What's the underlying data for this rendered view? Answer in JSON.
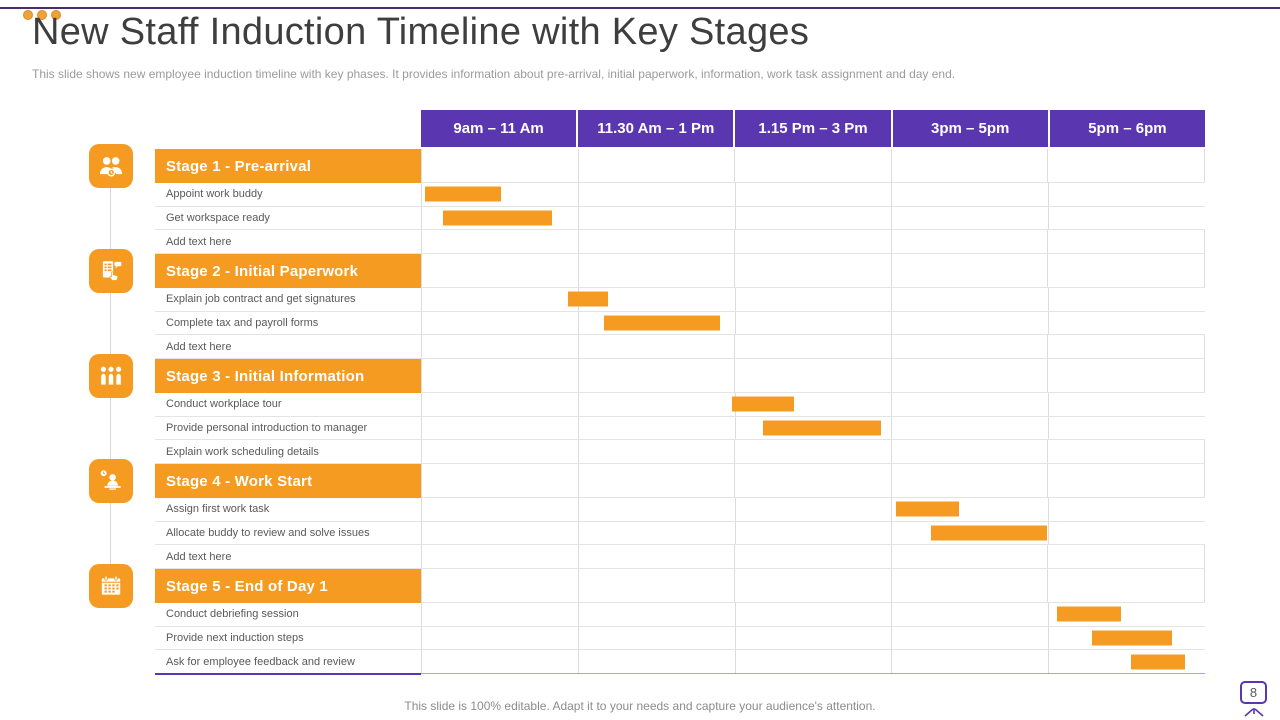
{
  "slide": {
    "title": "New Staff Induction Timeline with Key Stages",
    "subtitle": "This slide shows new employee induction timeline with key phases. It provides information about pre-arrival, initial paperwork, information, work task assignment and day end.",
    "footer": "This slide is 100% editable. Adapt it to your needs and capture your audience's attention.",
    "page_number": "8"
  },
  "colors": {
    "accent_orange": "#F59B22",
    "header_purple": "#5A36B0",
    "top_line_purple": "#4B2D6F",
    "grid_line": "#DCDCDC",
    "title_text": "#3E3E3E",
    "subtitle_text": "#9B9B9B",
    "task_text": "#595959",
    "footer_text": "#8C8C8C"
  },
  "chart_data": {
    "type": "gantt",
    "title": "New Staff Induction Timeline with Key Stages",
    "columns": [
      "9am – 11 Am",
      "11.30 Am – 1 Pm",
      "1.15 Pm – 3 Pm",
      "3pm – 5pm",
      "5pm – 6pm"
    ],
    "axis_note": "Bar positions measured as percent of full timeline width (9am to 6pm band)",
    "legend": "none",
    "grid": true,
    "stages": [
      {
        "label": "Stage 1 - Pre-arrival",
        "icon": "two-users-clock-icon",
        "tasks": [
          {
            "label": "Appoint work buddy",
            "bar": {
              "left_pct": 0.5,
              "width_pct": 9.7
            }
          },
          {
            "label": "Get workspace ready",
            "bar": {
              "left_pct": 2.8,
              "width_pct": 13.9
            }
          },
          {
            "label": "Add text here",
            "bar": null
          }
        ]
      },
      {
        "label": "Stage 2 - Initial Paperwork",
        "icon": "paperwork-form-icon",
        "tasks": [
          {
            "label": "Explain job contract and get signatures",
            "bar": {
              "left_pct": 18.8,
              "width_pct": 5.0
            }
          },
          {
            "label": "Complete tax and payroll forms",
            "bar": {
              "left_pct": 23.3,
              "width_pct": 14.9
            }
          },
          {
            "label": "Add text here",
            "bar": null
          }
        ]
      },
      {
        "label": "Stage 3 - Initial Information",
        "icon": "three-people-icon",
        "tasks": [
          {
            "label": "Conduct workplace tour",
            "bar": {
              "left_pct": 39.7,
              "width_pct": 7.9
            }
          },
          {
            "label": "Provide personal introduction to manager",
            "bar": {
              "left_pct": 43.6,
              "width_pct": 15.1
            }
          },
          {
            "label": "Explain work scheduling details",
            "bar": null
          }
        ]
      },
      {
        "label": "Stage 4 - Work Start",
        "icon": "person-desk-clock-icon",
        "tasks": [
          {
            "label": "Assign first work task",
            "bar": {
              "left_pct": 60.6,
              "width_pct": 8.0
            }
          },
          {
            "label": "Allocate buddy to review and solve issues",
            "bar": {
              "left_pct": 65.1,
              "width_pct": 14.7
            }
          },
          {
            "label": "Add text here",
            "bar": null
          }
        ]
      },
      {
        "label": "Stage 5 - End of Day 1",
        "icon": "calendar-icon",
        "tasks": [
          {
            "label": "Conduct debriefing session",
            "bar": {
              "left_pct": 81.1,
              "width_pct": 8.2
            }
          },
          {
            "label": "Provide next induction steps",
            "bar": {
              "left_pct": 85.6,
              "width_pct": 10.2
            }
          },
          {
            "label": "Ask for employee feedback and review",
            "bar": {
              "left_pct": 90.6,
              "width_pct": 6.8
            }
          }
        ]
      }
    ]
  }
}
